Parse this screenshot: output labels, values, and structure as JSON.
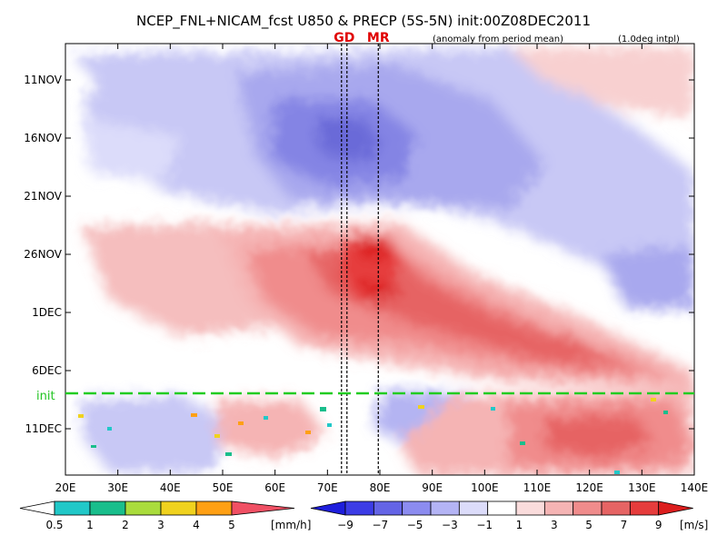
{
  "chart_data": {
    "type": "heatmap",
    "title": "NCEP_FNL+NICAM_fcst U850 & PRECP (5S-5N) init:00Z08DEC2011",
    "subtitle_anomaly": "(anomaly from period mean)",
    "subtitle_interp": "(1.0deg intpl)",
    "x_ticks": [
      "20E",
      "30E",
      "40E",
      "50E",
      "60E",
      "70E",
      "80E",
      "90E",
      "100E",
      "110E",
      "120E",
      "130E",
      "140E"
    ],
    "x_range": [
      20,
      140
    ],
    "y_ticks": [
      "11NOV",
      "16NOV",
      "21NOV",
      "26NOV",
      "1DEC",
      "6DEC",
      "11DEC"
    ],
    "init_label": "init",
    "init_line_color": "#22cc22",
    "markers": [
      {
        "label": "GD",
        "lon": 73.2
      },
      {
        "label": "MR",
        "lon": 79.7
      }
    ],
    "precip_colorbar": {
      "unit": "[mm/h]",
      "ticks": [
        "0.5",
        "1",
        "2",
        "3",
        "4",
        "5"
      ],
      "colors": [
        "#ffffff",
        "#21c8c8",
        "#19be8c",
        "#aadc3c",
        "#f0d21e",
        "#ffa014",
        "#f05064"
      ]
    },
    "wind_colorbar": {
      "unit": "[m/s]",
      "ticks": [
        "−9",
        "−7",
        "−5",
        "−3",
        "−1",
        "1",
        "3",
        "5",
        "7",
        "9"
      ],
      "colors": [
        "#1e1edc",
        "#3c3ce6",
        "#6464e6",
        "#8c8cf0",
        "#b4b4f5",
        "#dcdcfa",
        "#ffffff",
        "#fadcdc",
        "#f5b4b4",
        "#f08c8c",
        "#e66464",
        "#e63c3c",
        "#dc1e1e"
      ]
    }
  }
}
